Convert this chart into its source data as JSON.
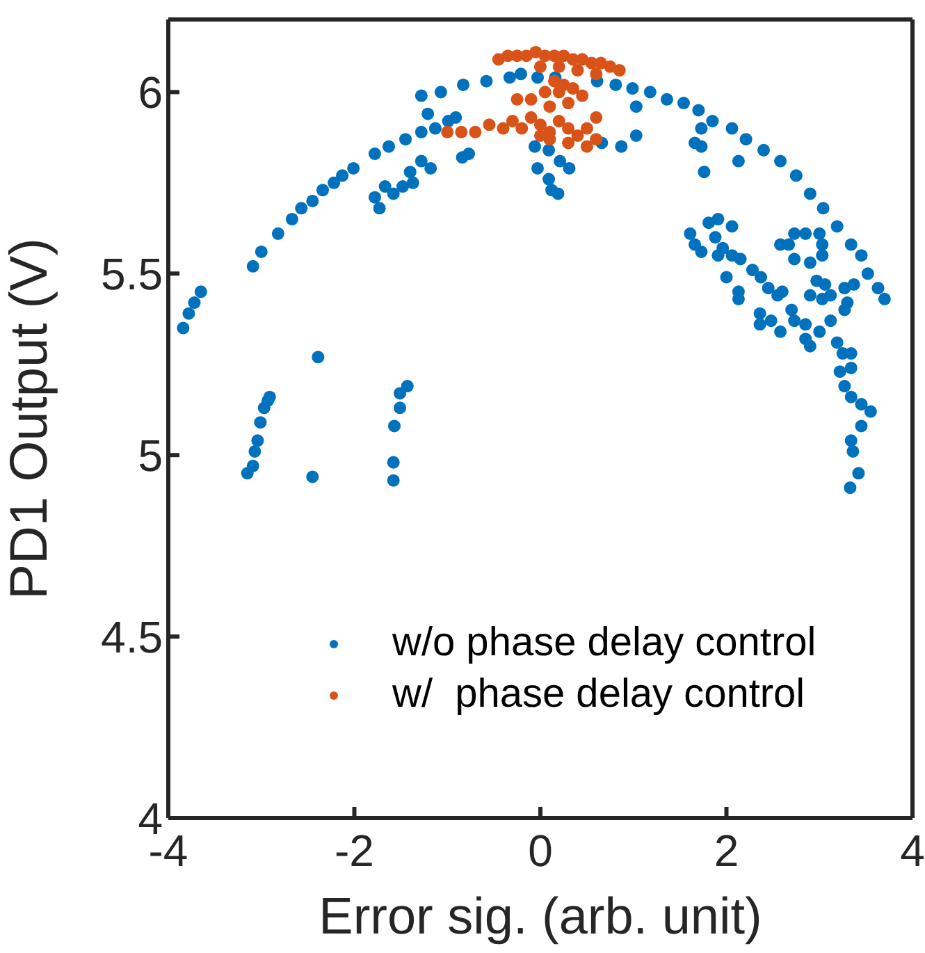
{
  "chart_data": {
    "type": "scatter",
    "xlabel": "Error sig. (arb. unit)",
    "ylabel": "PD1 Output (V)",
    "xlim": [
      -4,
      4
    ],
    "xticks": [
      -4,
      -2,
      0,
      2,
      4
    ],
    "ylim": [
      4,
      6.2
    ],
    "yticks": [
      4,
      4.5,
      5,
      5.5,
      6
    ],
    "legend": "bottom",
    "marker": "circle",
    "grid": false,
    "series": [
      {
        "name": "w/o phase delay control",
        "color": "#0072bd",
        "x": [
          -3.84,
          -3.78,
          -3.72,
          -3.65,
          -3.09,
          -3.0,
          -2.82,
          -2.67,
          -2.57,
          -2.45,
          -2.34,
          -2.22,
          -2.13,
          -2.01,
          -1.78,
          -1.63,
          -1.45,
          -1.28,
          -1.13,
          -0.99,
          -1.28,
          -1.07,
          -0.83,
          -0.58,
          -0.33,
          -0.21,
          -1.78,
          -1.67,
          -1.58,
          -1.48,
          -1.37,
          -1.28,
          -1.18,
          -1.4,
          -1.73,
          -1.21,
          -0.91,
          -0.84,
          -0.77,
          -3.15,
          -3.09,
          -3.07,
          -3.04,
          -3.01,
          -2.97,
          -2.93,
          -2.91,
          -2.45,
          -2.39,
          -1.58,
          -1.58,
          -1.57,
          -1.51,
          -1.51,
          -1.43,
          -0.06,
          -0.03,
          -0.03,
          0.16,
          0.61,
          0.81,
          0.99,
          1.18,
          1.36,
          1.54,
          1.7,
          1.85,
          2.06,
          2.21,
          2.4,
          2.58,
          2.75,
          2.9,
          3.04,
          3.19,
          3.34,
          3.45,
          3.52,
          3.63,
          3.7,
          0.09,
          0.21,
          0.31,
          0.09,
          0.12,
          0.19,
          0.66,
          0.87,
          1.03,
          1.03,
          1.66,
          1.73,
          1.76,
          1.73,
          2.13,
          1.61,
          1.66,
          1.73,
          1.81,
          1.91,
          2.06,
          1.88,
          1.96,
          2.06,
          2.15,
          1.91,
          2.0,
          2.13,
          2.13,
          2.28,
          2.37,
          2.45,
          2.55,
          2.6,
          2.58,
          2.67,
          2.73,
          2.73,
          2.85,
          3.0,
          2.7,
          2.36,
          2.36,
          2.48,
          2.58,
          2.73,
          2.85,
          2.85,
          2.9,
          3.0,
          2.9,
          3.03,
          2.97,
          2.9,
          3.06,
          3.12,
          3.12,
          3.27,
          3.37,
          3.3,
          3.27,
          3.03,
          3.03,
          3.19,
          3.25,
          3.34,
          3.22,
          3.34,
          3.27,
          3.34,
          3.45,
          3.55,
          3.45,
          3.34,
          3.36,
          3.42,
          3.33
        ],
        "values": [
          5.35,
          5.39,
          5.42,
          5.45,
          5.52,
          5.56,
          5.61,
          5.65,
          5.68,
          5.7,
          5.73,
          5.75,
          5.77,
          5.79,
          5.83,
          5.85,
          5.87,
          5.89,
          5.9,
          5.92,
          5.99,
          6.0,
          6.02,
          6.03,
          6.04,
          6.05,
          5.71,
          5.74,
          5.72,
          5.74,
          5.75,
          5.81,
          5.79,
          5.78,
          5.68,
          5.94,
          5.93,
          5.82,
          5.83,
          4.95,
          4.97,
          5.01,
          5.04,
          5.09,
          5.13,
          5.15,
          5.16,
          4.94,
          5.27,
          4.93,
          4.98,
          5.08,
          5.13,
          5.17,
          5.19,
          5.85,
          5.79,
          6.04,
          6.04,
          6.03,
          6.02,
          6.01,
          6.0,
          5.98,
          5.97,
          5.95,
          5.92,
          5.9,
          5.87,
          5.84,
          5.81,
          5.77,
          5.72,
          5.68,
          5.63,
          5.58,
          5.55,
          5.5,
          5.46,
          5.43,
          5.84,
          5.81,
          5.79,
          5.76,
          5.73,
          5.72,
          5.86,
          5.85,
          5.88,
          5.96,
          5.86,
          5.85,
          5.78,
          5.9,
          5.81,
          5.61,
          5.58,
          5.56,
          5.64,
          5.65,
          5.63,
          5.6,
          5.57,
          5.55,
          5.54,
          5.55,
          5.49,
          5.45,
          5.43,
          5.51,
          5.49,
          5.46,
          5.44,
          5.45,
          5.58,
          5.58,
          5.54,
          5.61,
          5.61,
          5.61,
          5.4,
          5.39,
          5.36,
          5.37,
          5.34,
          5.37,
          5.36,
          5.32,
          5.3,
          5.34,
          5.44,
          5.43,
          5.48,
          5.53,
          5.47,
          5.44,
          5.37,
          5.46,
          5.47,
          5.42,
          5.4,
          5.58,
          5.55,
          5.31,
          5.28,
          5.28,
          5.23,
          5.24,
          5.19,
          5.16,
          5.14,
          5.12,
          5.08,
          5.04,
          5.01,
          4.95,
          4.91
        ]
      },
      {
        "name": "w/  phase delay control",
        "color": "#d95319",
        "x": [
          -0.45,
          -0.35,
          -0.25,
          -0.15,
          -0.05,
          0.05,
          0.15,
          0.25,
          0.35,
          0.45,
          0.55,
          0.65,
          0.75,
          0.85,
          0.0,
          0.2,
          0.4,
          0.6,
          -0.25,
          -0.1,
          0.05,
          0.15,
          0.25,
          0.35,
          0.45,
          0.1,
          0.3,
          0.2,
          -1.0,
          -0.85,
          -0.7,
          -0.55,
          -0.4,
          -0.3,
          -0.2,
          -0.1,
          0.0,
          0.1,
          0.2,
          0.3,
          0.4,
          0.5,
          0.6,
          0.5,
          0.3,
          0.1,
          0.0,
          0.6
        ],
        "values": [
          6.09,
          6.1,
          6.1,
          6.1,
          6.11,
          6.1,
          6.1,
          6.1,
          6.09,
          6.09,
          6.08,
          6.08,
          6.07,
          6.06,
          6.07,
          6.07,
          6.06,
          6.05,
          5.98,
          5.98,
          6.0,
          6.03,
          6.02,
          6.01,
          5.99,
          5.96,
          5.97,
          6.0,
          5.89,
          5.89,
          5.89,
          5.91,
          5.9,
          5.92,
          5.9,
          5.93,
          5.91,
          5.89,
          5.92,
          5.9,
          5.88,
          5.9,
          5.87,
          5.85,
          5.86,
          5.87,
          5.88,
          5.93
        ]
      }
    ]
  }
}
